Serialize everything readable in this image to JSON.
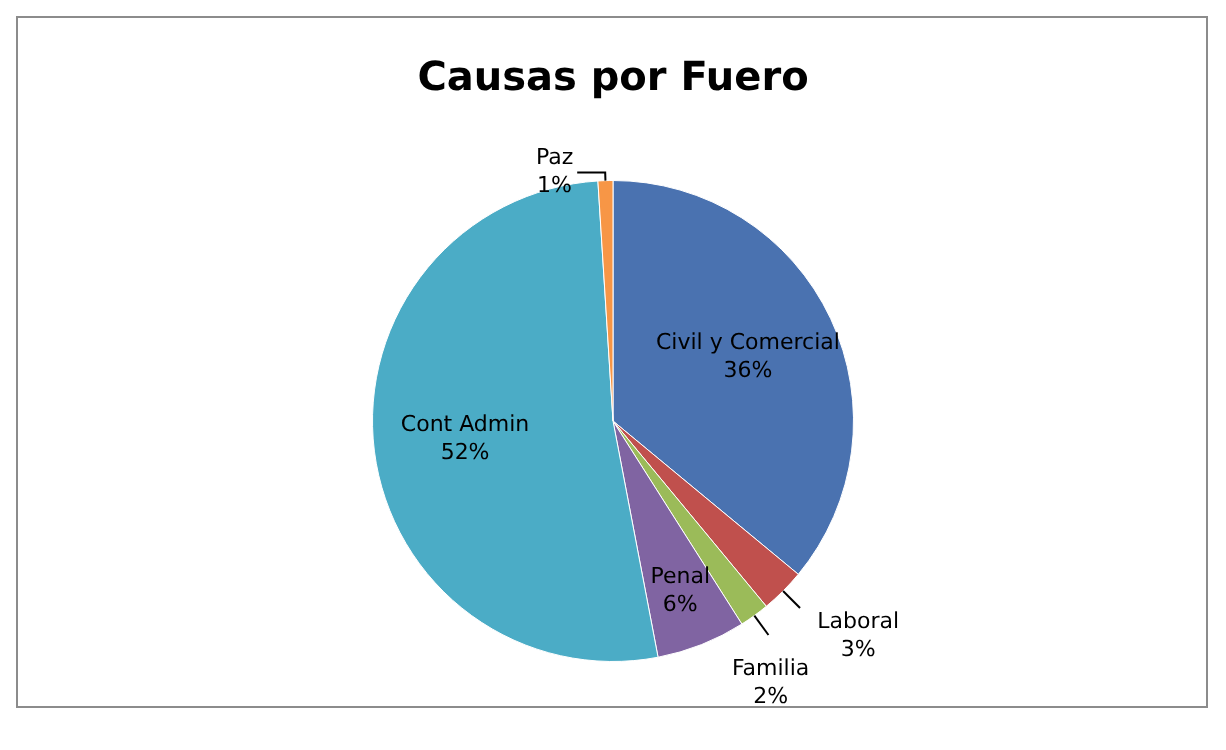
{
  "chart_data": {
    "type": "pie",
    "title": "Causas por Fuero",
    "categories": [
      "Civil y Comercial",
      "Laboral",
      "Familia",
      "Penal",
      "Cont Admin",
      "Paz"
    ],
    "values": [
      36,
      3,
      2,
      6,
      52,
      1
    ],
    "value_labels": [
      "36%",
      "3%",
      "2%",
      "6%",
      "52%",
      "1%"
    ],
    "colors": [
      "#4a72b0",
      "#c0504d",
      "#9bbb59",
      "#8064a2",
      "#4bacc6",
      "#f79646"
    ],
    "legend": false
  }
}
